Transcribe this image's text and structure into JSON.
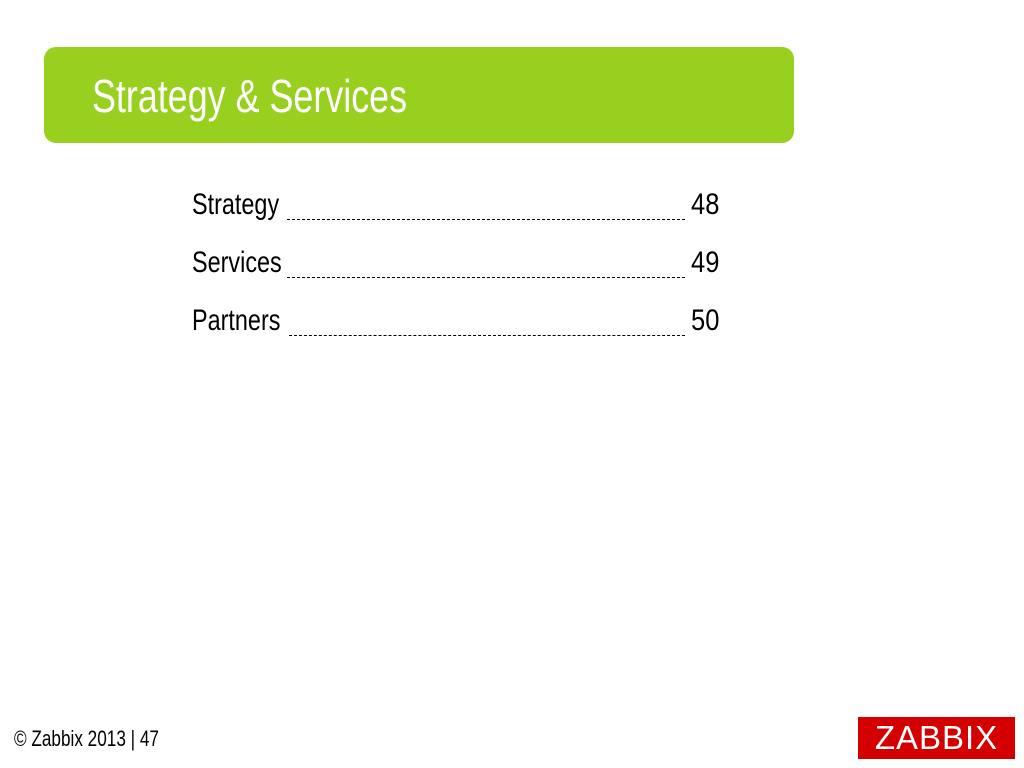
{
  "slide": {
    "title": "Strategy & Services"
  },
  "toc": {
    "items": [
      {
        "label": "Strategy",
        "page": "48"
      },
      {
        "label": "Services",
        "page": "49"
      },
      {
        "label": "Partners",
        "page": "50"
      }
    ]
  },
  "footer": {
    "text": "© Zabbix 2013 | 47"
  },
  "logo": {
    "text": "ZABBIX"
  },
  "colors": {
    "banner": "#97d01e",
    "logo_background": "#d40000"
  }
}
